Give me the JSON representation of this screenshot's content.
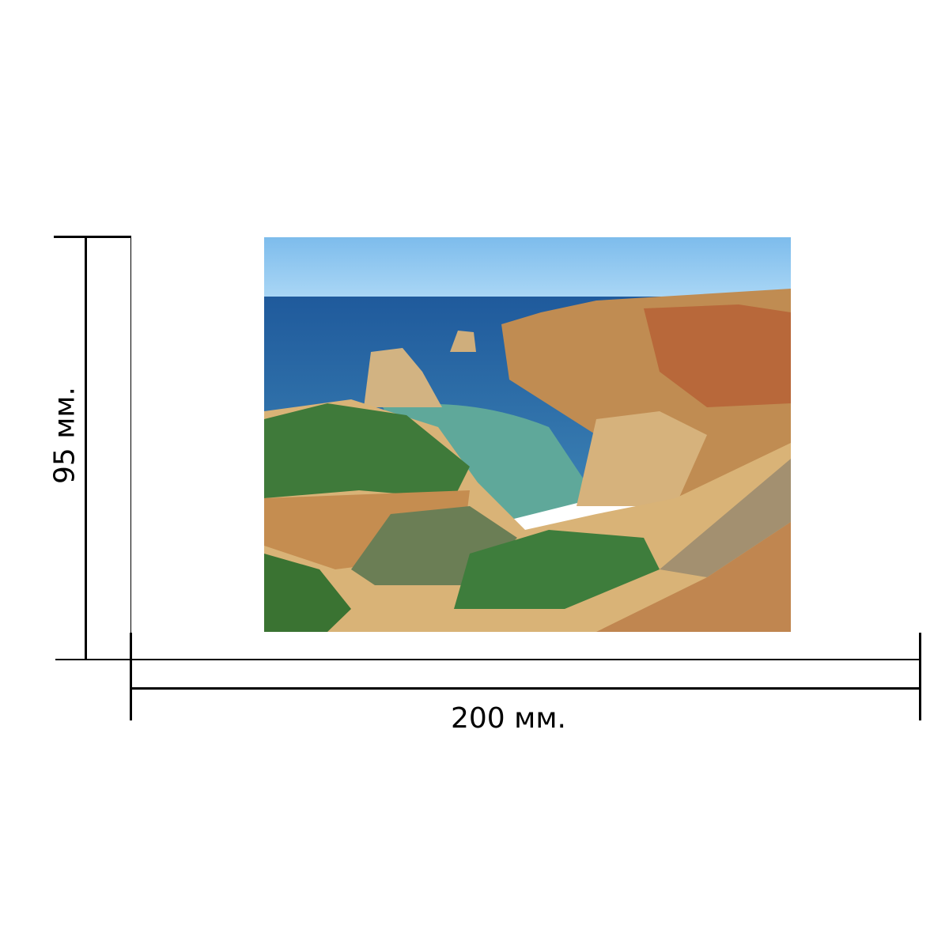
{
  "dimensions": {
    "width_label": "200 мм.",
    "height_label": "95 мм."
  },
  "photo": {
    "subject": "coastal-cliffs-beach",
    "colors": {
      "sky": "#8cc6ef",
      "sea": "#2f6fae",
      "lagoon": "#5fa89a",
      "rock": "#c99a5c",
      "vegetation": "#3f7a3a",
      "sand": "#d9b377"
    }
  }
}
